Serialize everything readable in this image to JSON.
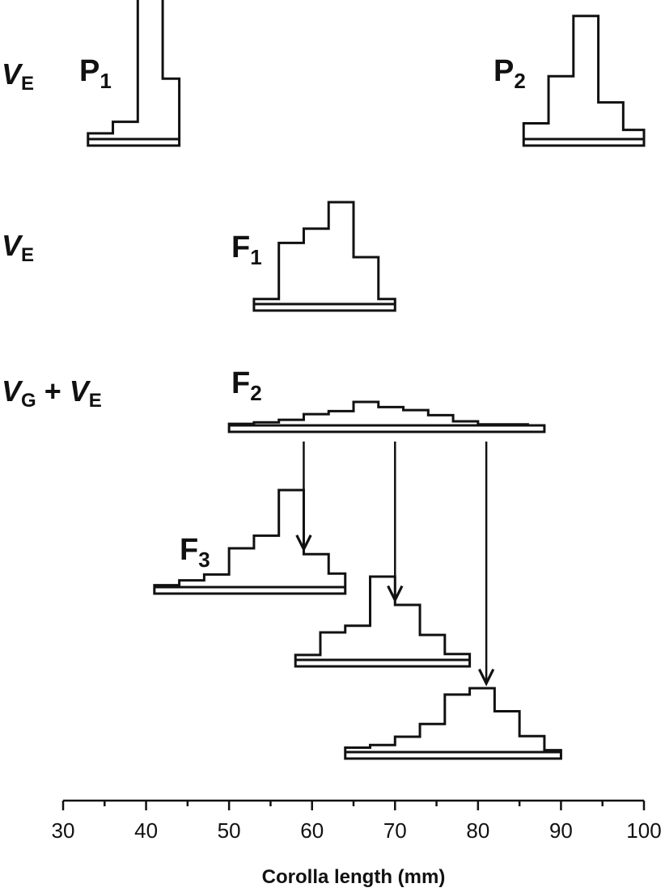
{
  "chart_data": {
    "type": "histogram",
    "xlabel": "Corolla length (mm)",
    "xlim": [
      30,
      100
    ],
    "xticks": [
      30,
      40,
      50,
      60,
      70,
      80,
      90,
      100
    ],
    "variance_labels": [
      {
        "row": "P",
        "main1": "V",
        "sub1": "E",
        "plus": "",
        "main2": "",
        "sub2": ""
      },
      {
        "row": "F1",
        "main1": "V",
        "sub1": "E",
        "plus": "",
        "main2": "",
        "sub2": ""
      },
      {
        "row": "F2",
        "main1": "V",
        "sub1": "G",
        "plus": " + ",
        "main2": "V",
        "sub2": "E"
      }
    ],
    "series": [
      {
        "label": "P",
        "label_sub": "1",
        "bin_width": 3,
        "bins": [
          [
            33,
            36,
            0.04
          ],
          [
            36,
            39,
            0.12
          ],
          [
            39,
            42,
            1.0
          ],
          [
            42,
            44,
            0.42
          ]
        ]
      },
      {
        "label": "P",
        "label_sub": "2",
        "bin_width": 3,
        "bins": [
          [
            85.5,
            88.5,
            0.12
          ],
          [
            88.5,
            91.5,
            0.48
          ],
          [
            91.5,
            94.5,
            0.94
          ],
          [
            94.5,
            97.5,
            0.28
          ],
          [
            97.5,
            100,
            0.07
          ]
        ]
      },
      {
        "label": "F",
        "label_sub": "1",
        "bin_width": 3,
        "bins": [
          [
            53,
            56,
            0.05
          ],
          [
            56,
            59,
            0.6
          ],
          [
            59,
            62,
            0.74
          ],
          [
            62,
            65,
            1.0
          ],
          [
            65,
            68,
            0.46
          ],
          [
            68,
            70,
            0.05
          ]
        ]
      },
      {
        "label": "F",
        "label_sub": "2",
        "bin_width": 3,
        "bins": [
          [
            50,
            53,
            0.03
          ],
          [
            53,
            56,
            0.06
          ],
          [
            56,
            59,
            0.11
          ],
          [
            59,
            62,
            0.22
          ],
          [
            62,
            65,
            0.28
          ],
          [
            65,
            68,
            0.46
          ],
          [
            68,
            71,
            0.36
          ],
          [
            71,
            74,
            0.3
          ],
          [
            74,
            77,
            0.2
          ],
          [
            77,
            80,
            0.08
          ],
          [
            80,
            83,
            0.02
          ],
          [
            83,
            86,
            0.02
          ],
          [
            86,
            88,
            0.0
          ]
        ]
      },
      {
        "label": "F",
        "label_sub": "3",
        "bin_width": 3,
        "bins": [
          [
            41,
            44,
            0.02
          ],
          [
            44,
            47,
            0.07
          ],
          [
            47,
            50,
            0.13
          ],
          [
            50,
            53,
            0.4
          ],
          [
            53,
            56,
            0.53
          ],
          [
            56,
            59,
            1.0
          ],
          [
            59,
            62,
            0.34
          ],
          [
            62,
            64,
            0.14
          ]
        ]
      },
      {
        "label": "",
        "label_sub": "",
        "bin_width": 3,
        "bins": [
          [
            58,
            61,
            0.06
          ],
          [
            61,
            64,
            0.33
          ],
          [
            64,
            67,
            0.41
          ],
          [
            67,
            70,
            1.0
          ],
          [
            70,
            73,
            0.66
          ],
          [
            73,
            76,
            0.3
          ],
          [
            76,
            79,
            0.07
          ]
        ]
      },
      {
        "label": "",
        "label_sub": "",
        "bin_width": 3,
        "bins": [
          [
            64,
            67,
            0.07
          ],
          [
            67,
            70,
            0.11
          ],
          [
            70,
            73,
            0.24
          ],
          [
            73,
            76,
            0.44
          ],
          [
            76,
            79,
            0.9
          ],
          [
            79,
            82,
            1.0
          ],
          [
            82,
            85,
            0.64
          ],
          [
            85,
            88,
            0.25
          ],
          [
            88,
            90,
            0.03
          ]
        ]
      }
    ],
    "selection_arrows": [
      {
        "from_x": 59,
        "to_series": 4
      },
      {
        "from_x": 70,
        "to_series": 5
      },
      {
        "from_x": 81,
        "to_series": 6
      }
    ]
  }
}
